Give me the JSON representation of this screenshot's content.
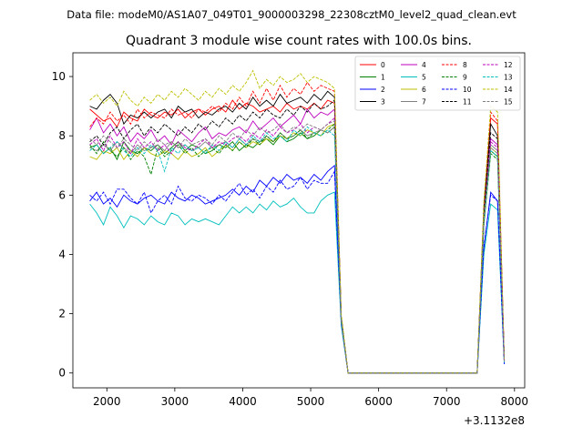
{
  "header": {
    "data_file": "Data file: modeM0/AS1A07_049T01_9000003298_22308cztM0_level2_quad_clean.evt"
  },
  "chart_data": {
    "type": "line",
    "title": "Quadrant 3 module wise count rates with 100.0s bins.",
    "xlabel": "",
    "ylabel": "",
    "x_offset_label": "+3.1132e8",
    "xlim": [
      1500,
      8150
    ],
    "ylim": [
      -0.5,
      10.8
    ],
    "xticks": [
      2000,
      3000,
      4000,
      5000,
      6000,
      7000,
      8000
    ],
    "yticks": [
      0,
      2,
      4,
      6,
      8,
      10
    ],
    "legend_position": "top-right",
    "x": [
      1750,
      1850,
      1950,
      2050,
      2150,
      2250,
      2350,
      2450,
      2550,
      2650,
      2750,
      2850,
      2950,
      3050,
      3150,
      3250,
      3350,
      3450,
      3550,
      3650,
      3750,
      3850,
      3950,
      4050,
      4150,
      4250,
      4350,
      4450,
      4550,
      4650,
      4750,
      4850,
      4950,
      5050,
      5150,
      5250,
      5350,
      5450,
      5550,
      5650,
      5750,
      5850,
      5950,
      6050,
      6150,
      6250,
      6350,
      6450,
      6550,
      6650,
      6750,
      6850,
      6950,
      7050,
      7150,
      7250,
      7350,
      7450,
      7550,
      7650,
      7750,
      7850
    ],
    "series": [
      {
        "name": "0",
        "color": "#ff0000",
        "dash": false,
        "values": [
          8.9,
          8.7,
          8.5,
          8.6,
          8.3,
          8.8,
          8.6,
          8.5,
          8.9,
          8.7,
          8.6,
          8.8,
          8.7,
          8.9,
          8.6,
          8.8,
          8.9,
          8.7,
          8.9,
          9.0,
          8.8,
          9.2,
          8.9,
          9.1,
          9.0,
          8.8,
          8.9,
          9.0,
          8.8,
          9.1,
          8.9,
          9.0,
          8.9,
          9.1,
          8.9,
          9.2,
          9.1,
          1.9,
          0.0,
          0.0,
          0.0,
          0.0,
          0.0,
          0.0,
          0.0,
          0.0,
          0.0,
          0.0,
          0.0,
          0.0,
          0.0,
          0.0,
          0.0,
          0.0,
          0.0,
          0.0,
          0.0,
          0.0,
          5.5,
          8.6,
          8.4,
          0.4
        ]
      },
      {
        "name": "1",
        "color": "#008000",
        "dash": false,
        "values": [
          7.6,
          7.7,
          7.4,
          7.6,
          7.2,
          7.8,
          7.5,
          7.4,
          7.6,
          7.5,
          7.7,
          7.4,
          7.6,
          7.8,
          7.5,
          7.7,
          7.6,
          7.4,
          7.5,
          7.7,
          7.6,
          7.8,
          7.5,
          7.7,
          7.6,
          7.8,
          7.9,
          7.7,
          8.0,
          7.8,
          7.9,
          8.1,
          7.9,
          8.0,
          8.2,
          8.1,
          8.3,
          1.8,
          0.0,
          0.0,
          0.0,
          0.0,
          0.0,
          0.0,
          0.0,
          0.0,
          0.0,
          0.0,
          0.0,
          0.0,
          0.0,
          0.0,
          0.0,
          0.0,
          0.0,
          0.0,
          0.0,
          0.0,
          5.0,
          7.5,
          7.3,
          0.4
        ]
      },
      {
        "name": "2",
        "color": "#0000ff",
        "dash": false,
        "values": [
          5.8,
          6.1,
          5.7,
          5.9,
          5.6,
          6.0,
          5.8,
          5.7,
          5.9,
          6.0,
          5.8,
          5.7,
          6.1,
          5.9,
          5.8,
          6.0,
          5.9,
          5.7,
          5.8,
          5.9,
          6.0,
          6.2,
          6.0,
          6.3,
          6.1,
          6.5,
          6.3,
          6.6,
          6.4,
          6.7,
          6.5,
          6.6,
          6.4,
          6.7,
          6.5,
          6.8,
          7.0,
          1.7,
          0.0,
          0.0,
          0.0,
          0.0,
          0.0,
          0.0,
          0.0,
          0.0,
          0.0,
          0.0,
          0.0,
          0.0,
          0.0,
          0.0,
          0.0,
          0.0,
          0.0,
          0.0,
          0.0,
          0.0,
          4.2,
          6.1,
          5.8,
          0.3
        ]
      },
      {
        "name": "3",
        "color": "#000000",
        "dash": false,
        "values": [
          9.0,
          8.9,
          9.2,
          9.4,
          9.1,
          8.4,
          8.7,
          8.6,
          8.8,
          8.6,
          8.8,
          8.9,
          8.6,
          9.0,
          8.8,
          8.9,
          8.6,
          8.8,
          8.7,
          8.9,
          9.0,
          8.8,
          9.1,
          8.9,
          9.3,
          9.0,
          9.2,
          9.0,
          9.4,
          9.1,
          9.2,
          9.3,
          9.1,
          9.4,
          9.2,
          9.5,
          9.3,
          1.9,
          0.0,
          0.0,
          0.0,
          0.0,
          0.0,
          0.0,
          0.0,
          0.0,
          0.0,
          0.0,
          0.0,
          0.0,
          0.0,
          0.0,
          0.0,
          0.0,
          0.0,
          0.0,
          0.0,
          0.0,
          5.6,
          8.4,
          8.0,
          0.4
        ]
      },
      {
        "name": "4",
        "color": "#bf00bf",
        "dash": false,
        "values": [
          8.2,
          8.6,
          8.1,
          8.4,
          8.0,
          8.3,
          7.8,
          8.1,
          7.9,
          8.2,
          7.8,
          8.0,
          7.7,
          8.2,
          8.0,
          7.8,
          8.1,
          8.3,
          7.9,
          8.1,
          8.0,
          8.2,
          8.3,
          8.1,
          8.5,
          8.2,
          8.4,
          8.6,
          8.3,
          8.5,
          8.7,
          8.4,
          8.9,
          8.6,
          8.8,
          8.7,
          8.9,
          1.8,
          0.0,
          0.0,
          0.0,
          0.0,
          0.0,
          0.0,
          0.0,
          0.0,
          0.0,
          0.0,
          0.0,
          0.0,
          0.0,
          0.0,
          0.0,
          0.0,
          0.0,
          0.0,
          0.0,
          0.0,
          5.3,
          7.9,
          7.7,
          0.4
        ]
      },
      {
        "name": "5",
        "color": "#00bfbf",
        "dash": false,
        "values": [
          5.7,
          5.4,
          5.0,
          5.6,
          5.3,
          4.9,
          5.3,
          5.2,
          5.0,
          5.3,
          5.1,
          5.0,
          5.4,
          5.3,
          5.0,
          5.2,
          5.1,
          5.2,
          5.1,
          5.0,
          5.3,
          5.6,
          5.4,
          5.6,
          5.4,
          5.7,
          5.5,
          5.8,
          5.6,
          5.7,
          5.9,
          5.6,
          5.4,
          5.4,
          5.8,
          6.0,
          6.1,
          1.6,
          0.0,
          0.0,
          0.0,
          0.0,
          0.0,
          0.0,
          0.0,
          0.0,
          0.0,
          0.0,
          0.0,
          0.0,
          0.0,
          0.0,
          0.0,
          0.0,
          0.0,
          0.0,
          0.0,
          0.0,
          4.0,
          5.7,
          5.5,
          0.3
        ]
      },
      {
        "name": "6",
        "color": "#bfbf00",
        "dash": false,
        "values": [
          7.3,
          7.2,
          7.5,
          7.4,
          7.6,
          7.2,
          7.5,
          7.3,
          7.6,
          7.4,
          7.3,
          7.5,
          7.4,
          7.2,
          7.5,
          7.3,
          7.4,
          7.6,
          7.3,
          7.5,
          7.7,
          7.5,
          7.8,
          7.6,
          7.8,
          7.7,
          7.9,
          7.8,
          8.0,
          7.9,
          8.1,
          8.0,
          8.2,
          8.1,
          8.0,
          8.3,
          8.4,
          1.8,
          0.0,
          0.0,
          0.0,
          0.0,
          0.0,
          0.0,
          0.0,
          0.0,
          0.0,
          0.0,
          0.0,
          0.0,
          0.0,
          0.0,
          0.0,
          0.0,
          0.0,
          0.0,
          0.0,
          0.0,
          5.1,
          7.6,
          7.4,
          0.4
        ]
      },
      {
        "name": "7",
        "color": "#808080",
        "dash": false,
        "values": [
          7.6,
          7.5,
          7.7,
          7.5,
          7.8,
          7.6,
          7.4,
          7.7,
          7.5,
          7.6,
          7.7,
          7.5,
          7.8,
          7.6,
          7.7,
          7.5,
          7.6,
          7.8,
          7.6,
          7.7,
          7.8,
          7.6,
          7.9,
          7.7,
          7.9,
          7.8,
          8.0,
          7.8,
          8.1,
          7.9,
          8.0,
          8.2,
          8.0,
          8.1,
          8.2,
          8.1,
          8.3,
          1.8,
          0.0,
          0.0,
          0.0,
          0.0,
          0.0,
          0.0,
          0.0,
          0.0,
          0.0,
          0.0,
          0.0,
          0.0,
          0.0,
          0.0,
          0.0,
          0.0,
          0.0,
          0.0,
          0.0,
          0.0,
          5.2,
          7.7,
          7.5,
          0.4
        ]
      },
      {
        "name": "8",
        "color": "#ff0000",
        "dash": true,
        "values": [
          8.3,
          8.6,
          8.4,
          8.8,
          8.5,
          8.7,
          8.4,
          8.9,
          8.6,
          8.8,
          8.7,
          8.6,
          8.9,
          8.7,
          8.8,
          8.6,
          8.9,
          8.8,
          9.0,
          8.8,
          9.1,
          8.9,
          9.3,
          9.0,
          9.5,
          9.1,
          9.6,
          9.2,
          9.7,
          9.3,
          9.6,
          9.4,
          9.8,
          9.5,
          9.7,
          9.6,
          9.5,
          1.9,
          0.0,
          0.0,
          0.0,
          0.0,
          0.0,
          0.0,
          0.0,
          0.0,
          0.0,
          0.0,
          0.0,
          0.0,
          0.0,
          0.0,
          0.0,
          0.0,
          0.0,
          0.0,
          0.0,
          0.0,
          5.6,
          8.8,
          8.5,
          0.4
        ]
      },
      {
        "name": "9",
        "color": "#008000",
        "dash": true,
        "values": [
          7.7,
          7.4,
          7.8,
          7.5,
          7.3,
          7.6,
          7.2,
          7.5,
          7.3,
          6.7,
          7.6,
          7.3,
          7.5,
          7.7,
          7.4,
          7.6,
          7.3,
          7.5,
          7.6,
          7.4,
          7.7,
          7.5,
          7.8,
          7.6,
          7.9,
          7.7,
          8.0,
          7.8,
          8.1,
          7.9,
          8.0,
          8.2,
          7.9,
          8.1,
          8.0,
          8.2,
          8.4,
          1.8,
          0.0,
          0.0,
          0.0,
          0.0,
          0.0,
          0.0,
          0.0,
          0.0,
          0.0,
          0.0,
          0.0,
          0.0,
          0.0,
          0.0,
          0.0,
          0.0,
          0.0,
          0.0,
          0.0,
          0.0,
          5.1,
          7.4,
          7.2,
          0.4
        ]
      },
      {
        "name": "10",
        "color": "#0000ff",
        "dash": true,
        "values": [
          6.0,
          5.8,
          6.1,
          5.7,
          6.2,
          6.2,
          5.9,
          5.7,
          6.1,
          5.4,
          5.8,
          6.0,
          5.7,
          6.3,
          5.9,
          5.8,
          6.0,
          5.9,
          5.7,
          6.0,
          5.8,
          6.1,
          6.4,
          6.0,
          6.2,
          5.9,
          6.3,
          6.1,
          6.5,
          6.2,
          6.3,
          6.6,
          6.2,
          6.5,
          6.4,
          6.4,
          6.8,
          1.7,
          0.0,
          0.0,
          0.0,
          0.0,
          0.0,
          0.0,
          0.0,
          0.0,
          0.0,
          0.0,
          0.0,
          0.0,
          0.0,
          0.0,
          0.0,
          0.0,
          0.0,
          0.0,
          0.0,
          0.0,
          4.3,
          6.0,
          5.8,
          0.3
        ]
      },
      {
        "name": "11",
        "color": "#000000",
        "dash": true,
        "values": [
          7.8,
          8.0,
          7.7,
          8.1,
          8.3,
          7.9,
          8.2,
          8.4,
          8.0,
          8.3,
          8.1,
          8.4,
          8.2,
          8.0,
          8.3,
          8.1,
          8.4,
          8.2,
          8.5,
          8.3,
          8.6,
          8.4,
          8.7,
          8.5,
          8.8,
          8.6,
          8.9,
          8.7,
          8.6,
          8.9,
          8.7,
          9.0,
          8.8,
          9.1,
          8.9,
          9.0,
          9.2,
          1.9,
          0.0,
          0.0,
          0.0,
          0.0,
          0.0,
          0.0,
          0.0,
          0.0,
          0.0,
          0.0,
          0.0,
          0.0,
          0.0,
          0.0,
          0.0,
          0.0,
          0.0,
          0.0,
          0.0,
          0.0,
          5.4,
          8.1,
          7.9,
          0.4
        ]
      },
      {
        "name": "12",
        "color": "#bf00bf",
        "dash": true,
        "values": [
          7.7,
          7.9,
          7.5,
          8.0,
          7.6,
          7.8,
          7.4,
          7.9,
          7.6,
          7.8,
          7.5,
          7.7,
          7.4,
          7.8,
          7.6,
          7.5,
          7.7,
          7.9,
          7.6,
          7.8,
          7.7,
          7.9,
          8.0,
          7.8,
          8.1,
          7.9,
          8.2,
          8.0,
          8.3,
          8.1,
          8.2,
          8.4,
          8.1,
          8.3,
          8.2,
          8.4,
          8.6,
          1.8,
          0.0,
          0.0,
          0.0,
          0.0,
          0.0,
          0.0,
          0.0,
          0.0,
          0.0,
          0.0,
          0.0,
          0.0,
          0.0,
          0.0,
          0.0,
          0.0,
          0.0,
          0.0,
          0.0,
          0.0,
          5.2,
          7.8,
          7.6,
          0.4
        ]
      },
      {
        "name": "13",
        "color": "#00bfbf",
        "dash": true,
        "values": [
          7.5,
          7.7,
          7.4,
          7.6,
          7.8,
          7.5,
          7.3,
          7.6,
          7.4,
          7.7,
          7.5,
          6.8,
          7.6,
          7.4,
          7.7,
          7.5,
          7.6,
          7.4,
          7.7,
          7.5,
          7.8,
          7.6,
          7.9,
          7.7,
          8.0,
          7.8,
          8.1,
          7.9,
          8.0,
          7.8,
          8.2,
          8.0,
          8.3,
          8.1,
          8.0,
          8.2,
          8.0,
          1.8,
          0.0,
          0.0,
          0.0,
          0.0,
          0.0,
          0.0,
          0.0,
          0.0,
          0.0,
          0.0,
          0.0,
          0.0,
          0.0,
          0.0,
          0.0,
          0.0,
          0.0,
          0.0,
          0.0,
          0.0,
          5.1,
          7.5,
          7.3,
          0.4
        ]
      },
      {
        "name": "14",
        "color": "#bfbf00",
        "dash": true,
        "values": [
          9.2,
          9.4,
          9.1,
          9.3,
          9.0,
          9.5,
          9.2,
          9.0,
          9.3,
          9.1,
          9.4,
          9.2,
          9.5,
          9.3,
          9.6,
          9.4,
          9.2,
          9.5,
          9.3,
          9.6,
          9.4,
          9.7,
          9.5,
          9.8,
          10.2,
          9.6,
          9.9,
          9.7,
          10.0,
          9.8,
          9.9,
          10.1,
          9.8,
          10.0,
          9.9,
          9.8,
          9.6,
          2.0,
          0.0,
          0.0,
          0.0,
          0.0,
          0.0,
          0.0,
          0.0,
          0.0,
          0.0,
          0.0,
          0.0,
          0.0,
          0.0,
          0.0,
          0.0,
          0.0,
          0.0,
          0.0,
          0.0,
          0.0,
          5.8,
          9.0,
          8.8,
          0.4
        ]
      },
      {
        "name": "15",
        "color": "#808080",
        "dash": true,
        "values": [
          7.9,
          7.7,
          8.0,
          7.8,
          7.6,
          7.9,
          7.7,
          7.5,
          7.8,
          7.6,
          7.9,
          7.7,
          7.8,
          7.6,
          7.9,
          7.7,
          7.8,
          7.9,
          7.7,
          8.0,
          7.8,
          8.1,
          7.9,
          8.2,
          8.0,
          8.3,
          8.1,
          8.2,
          8.4,
          8.1,
          8.3,
          8.2,
          8.4,
          8.3,
          8.2,
          8.4,
          8.5,
          1.8,
          0.0,
          0.0,
          0.0,
          0.0,
          0.0,
          0.0,
          0.0,
          0.0,
          0.0,
          0.0,
          0.0,
          0.0,
          0.0,
          0.0,
          0.0,
          0.0,
          0.0,
          0.0,
          0.0,
          0.0,
          5.2,
          7.6,
          7.4,
          0.4
        ]
      }
    ]
  }
}
